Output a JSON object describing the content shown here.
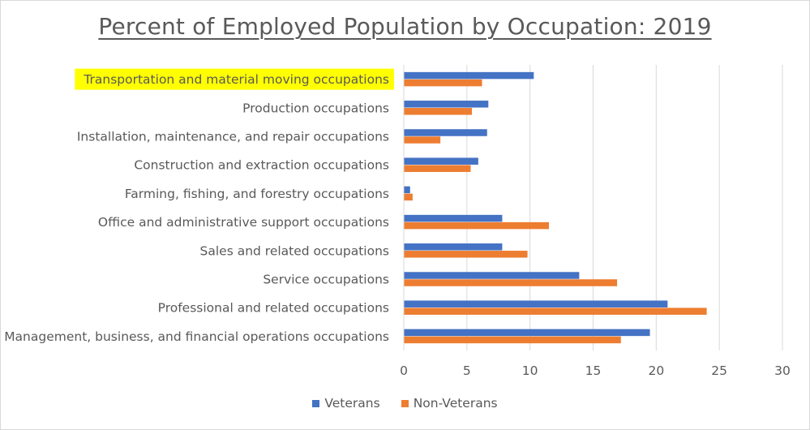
{
  "chart_data": {
    "type": "bar",
    "orientation": "horizontal",
    "title": "Percent of Employed Population by Occupation: 2019",
    "categories": [
      "Transportation and material moving occupations",
      "Production occupations",
      "Installation, maintenance, and repair occupations",
      "Construction and extraction occupations",
      "Farming, fishing, and forestry occupations",
      "Office and administrative support occupations",
      "Sales and related occupations",
      "Service occupations",
      "Professional and related occupations",
      "Management, business, and financial operations occupations"
    ],
    "highlighted_category": "Transportation and material moving occupations",
    "highlight_color": "#ffff00",
    "series": [
      {
        "name": "Veterans",
        "color": "#4472c4",
        "values": [
          10.3,
          6.7,
          6.6,
          5.9,
          0.5,
          7.8,
          7.8,
          13.9,
          20.9,
          19.5
        ]
      },
      {
        "name": "Non-Veterans",
        "color": "#ed7d31",
        "values": [
          6.2,
          5.4,
          2.9,
          5.3,
          0.7,
          11.5,
          9.8,
          16.9,
          24.0,
          17.2
        ]
      }
    ],
    "xlim": [
      0,
      30
    ],
    "xticks": [
      "0",
      "5",
      "10",
      "15",
      "20",
      "25",
      "30"
    ],
    "grid": true,
    "legend_position": "bottom"
  }
}
